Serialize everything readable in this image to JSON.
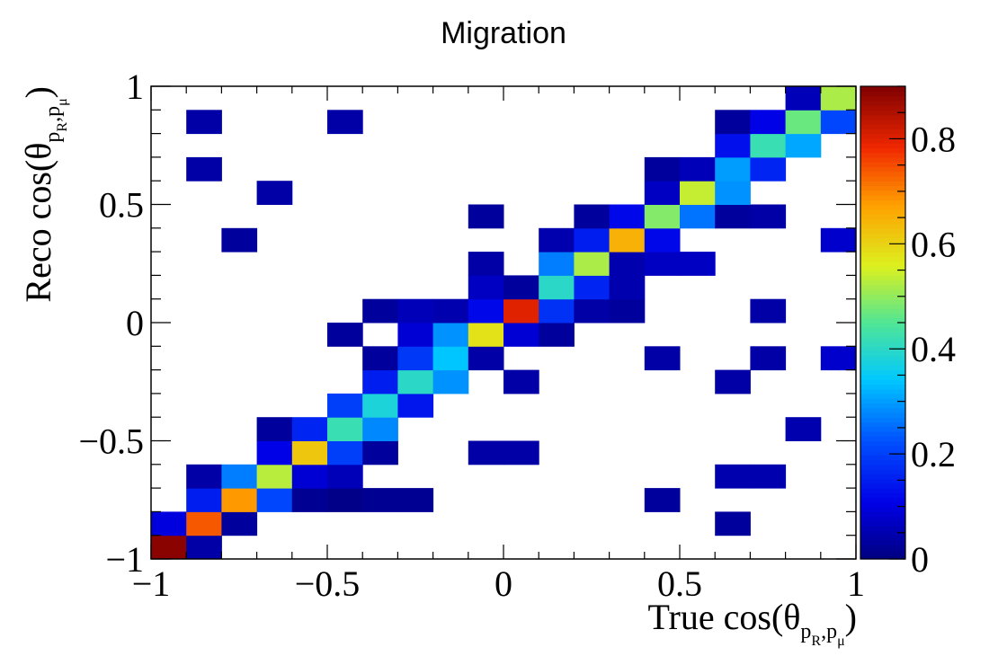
{
  "chart_data": {
    "type": "heatmap",
    "title": "Migration",
    "xlabel": "True cos(θ_{p_R,p_μ})",
    "ylabel": "Reco cos(θ_{p_R,p_μ})",
    "xlabel_parts": {
      "pre": "True cos(θ",
      "sub1": "p",
      "sub1b": "R",
      "sep": ",",
      "sub2": "p",
      "sub2b": "μ",
      "post": ")"
    },
    "ylabel_parts": {
      "pre": "Reco cos(θ",
      "sub1": "p",
      "sub1b": "R",
      "sep": ",",
      "sub2": "p",
      "sub2b": "μ",
      "post": ")"
    },
    "xlim": [
      -1,
      1
    ],
    "ylim": [
      -1,
      1
    ],
    "bins": 20,
    "x_ticks": [
      "−1",
      "−0.5",
      "0",
      "0.5",
      "1"
    ],
    "y_ticks": [
      "−1",
      "−0.5",
      "0",
      "0.5",
      "1"
    ],
    "colorbar": {
      "min": 0,
      "max": 0.9,
      "ticks": [
        "0",
        "0.2",
        "0.4",
        "0.6",
        "0.8"
      ],
      "tick_values": [
        0,
        0.2,
        0.4,
        0.6,
        0.8
      ],
      "colormap": "jet"
    },
    "cells": [
      [
        0,
        0,
        0.89
      ],
      [
        1,
        0,
        0.04
      ],
      [
        0,
        1,
        0.1
      ],
      [
        1,
        1,
        0.74
      ],
      [
        2,
        1,
        0.03
      ],
      [
        16,
        1,
        0.03
      ],
      [
        1,
        2,
        0.15
      ],
      [
        2,
        2,
        0.68
      ],
      [
        3,
        2,
        0.21
      ],
      [
        4,
        2,
        0.02
      ],
      [
        5,
        2,
        0.01
      ],
      [
        6,
        2,
        0.02
      ],
      [
        7,
        2,
        0.02
      ],
      [
        14,
        2,
        0.03
      ],
      [
        1,
        3,
        0.04
      ],
      [
        2,
        3,
        0.27
      ],
      [
        3,
        3,
        0.53
      ],
      [
        4,
        3,
        0.09
      ],
      [
        5,
        3,
        0.06
      ],
      [
        16,
        3,
        0.05
      ],
      [
        17,
        3,
        0.05
      ],
      [
        3,
        4,
        0.11
      ],
      [
        4,
        4,
        0.62
      ],
      [
        5,
        4,
        0.2
      ],
      [
        6,
        4,
        0.03
      ],
      [
        9,
        4,
        0.04
      ],
      [
        10,
        4,
        0.04
      ],
      [
        3,
        5,
        0.03
      ],
      [
        4,
        5,
        0.16
      ],
      [
        5,
        5,
        0.42
      ],
      [
        6,
        5,
        0.28
      ],
      [
        18,
        5,
        0.05
      ],
      [
        5,
        6,
        0.2
      ],
      [
        6,
        6,
        0.38
      ],
      [
        7,
        6,
        0.14
      ],
      [
        6,
        7,
        0.15
      ],
      [
        7,
        7,
        0.4
      ],
      [
        8,
        7,
        0.29
      ],
      [
        10,
        7,
        0.04
      ],
      [
        16,
        7,
        0.04
      ],
      [
        6,
        8,
        0.03
      ],
      [
        7,
        8,
        0.19
      ],
      [
        8,
        8,
        0.34
      ],
      [
        9,
        8,
        0.04
      ],
      [
        14,
        8,
        0.04
      ],
      [
        17,
        8,
        0.04
      ],
      [
        19,
        8,
        0.08
      ],
      [
        5,
        9,
        0.03
      ],
      [
        7,
        9,
        0.09
      ],
      [
        8,
        9,
        0.29
      ],
      [
        9,
        9,
        0.58
      ],
      [
        10,
        9,
        0.09
      ],
      [
        11,
        9,
        0.03
      ],
      [
        6,
        10,
        0.03
      ],
      [
        7,
        10,
        0.06
      ],
      [
        8,
        10,
        0.05
      ],
      [
        9,
        10,
        0.12
      ],
      [
        10,
        10,
        0.8
      ],
      [
        11,
        10,
        0.18
      ],
      [
        12,
        10,
        0.04
      ],
      [
        13,
        10,
        0.03
      ],
      [
        17,
        10,
        0.04
      ],
      [
        9,
        11,
        0.07
      ],
      [
        10,
        11,
        0.03
      ],
      [
        11,
        11,
        0.4
      ],
      [
        12,
        11,
        0.16
      ],
      [
        13,
        11,
        0.05
      ],
      [
        9,
        12,
        0.04
      ],
      [
        11,
        12,
        0.27
      ],
      [
        12,
        12,
        0.52
      ],
      [
        13,
        12,
        0.05
      ],
      [
        14,
        12,
        0.07
      ],
      [
        15,
        12,
        0.07
      ],
      [
        2,
        13,
        0.03
      ],
      [
        11,
        13,
        0.05
      ],
      [
        12,
        13,
        0.15
      ],
      [
        13,
        13,
        0.65
      ],
      [
        14,
        13,
        0.12
      ],
      [
        19,
        13,
        0.08
      ],
      [
        9,
        14,
        0.03
      ],
      [
        12,
        14,
        0.03
      ],
      [
        13,
        14,
        0.12
      ],
      [
        14,
        14,
        0.49
      ],
      [
        15,
        14,
        0.26
      ],
      [
        16,
        14,
        0.03
      ],
      [
        17,
        14,
        0.04
      ],
      [
        3,
        15,
        0.04
      ],
      [
        14,
        15,
        0.07
      ],
      [
        15,
        15,
        0.54
      ],
      [
        16,
        15,
        0.29
      ],
      [
        1,
        16,
        0.04
      ],
      [
        14,
        16,
        0.03
      ],
      [
        15,
        16,
        0.06
      ],
      [
        16,
        16,
        0.3
      ],
      [
        17,
        16,
        0.16
      ],
      [
        16,
        17,
        0.13
      ],
      [
        17,
        17,
        0.42
      ],
      [
        18,
        17,
        0.31
      ],
      [
        1,
        18,
        0.04
      ],
      [
        5,
        18,
        0.04
      ],
      [
        16,
        18,
        0.03
      ],
      [
        17,
        18,
        0.11
      ],
      [
        18,
        18,
        0.47
      ],
      [
        19,
        18,
        0.21
      ],
      [
        18,
        19,
        0.06
      ],
      [
        19,
        19,
        0.52
      ]
    ]
  }
}
